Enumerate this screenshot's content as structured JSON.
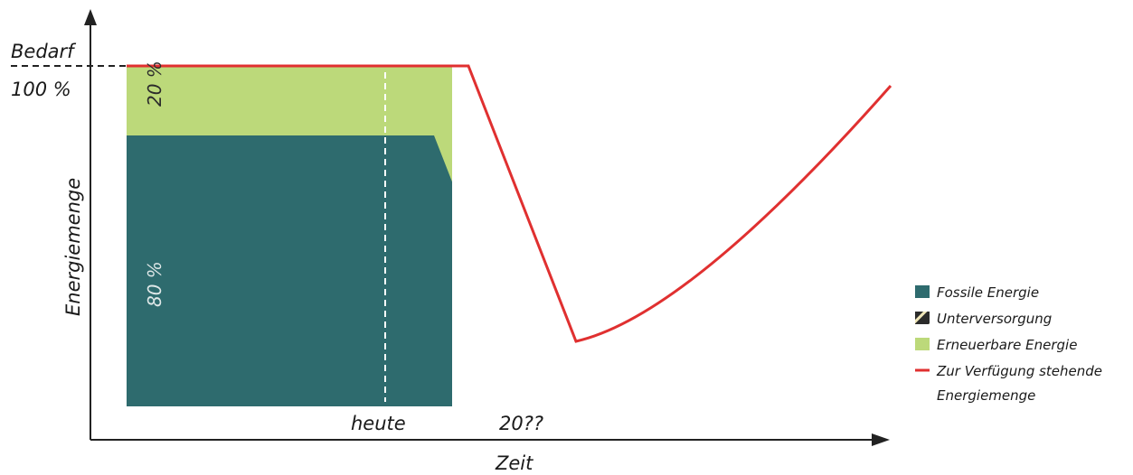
{
  "axes": {
    "y_label": "Energiemenge",
    "x_label": "Zeit"
  },
  "levels": {
    "demand": "Bedarf",
    "full": "100 %",
    "renewable_share": "20 %",
    "fossil_share": "80 %"
  },
  "time_marks": {
    "today": "heute",
    "future": "20??"
  },
  "legend": [
    "Fossile Energie",
    "Unterversorgung",
    "Erneuerbare Energie",
    [
      "Zur Verfügung stehende",
      "Energiemenge"
    ]
  ]
}
